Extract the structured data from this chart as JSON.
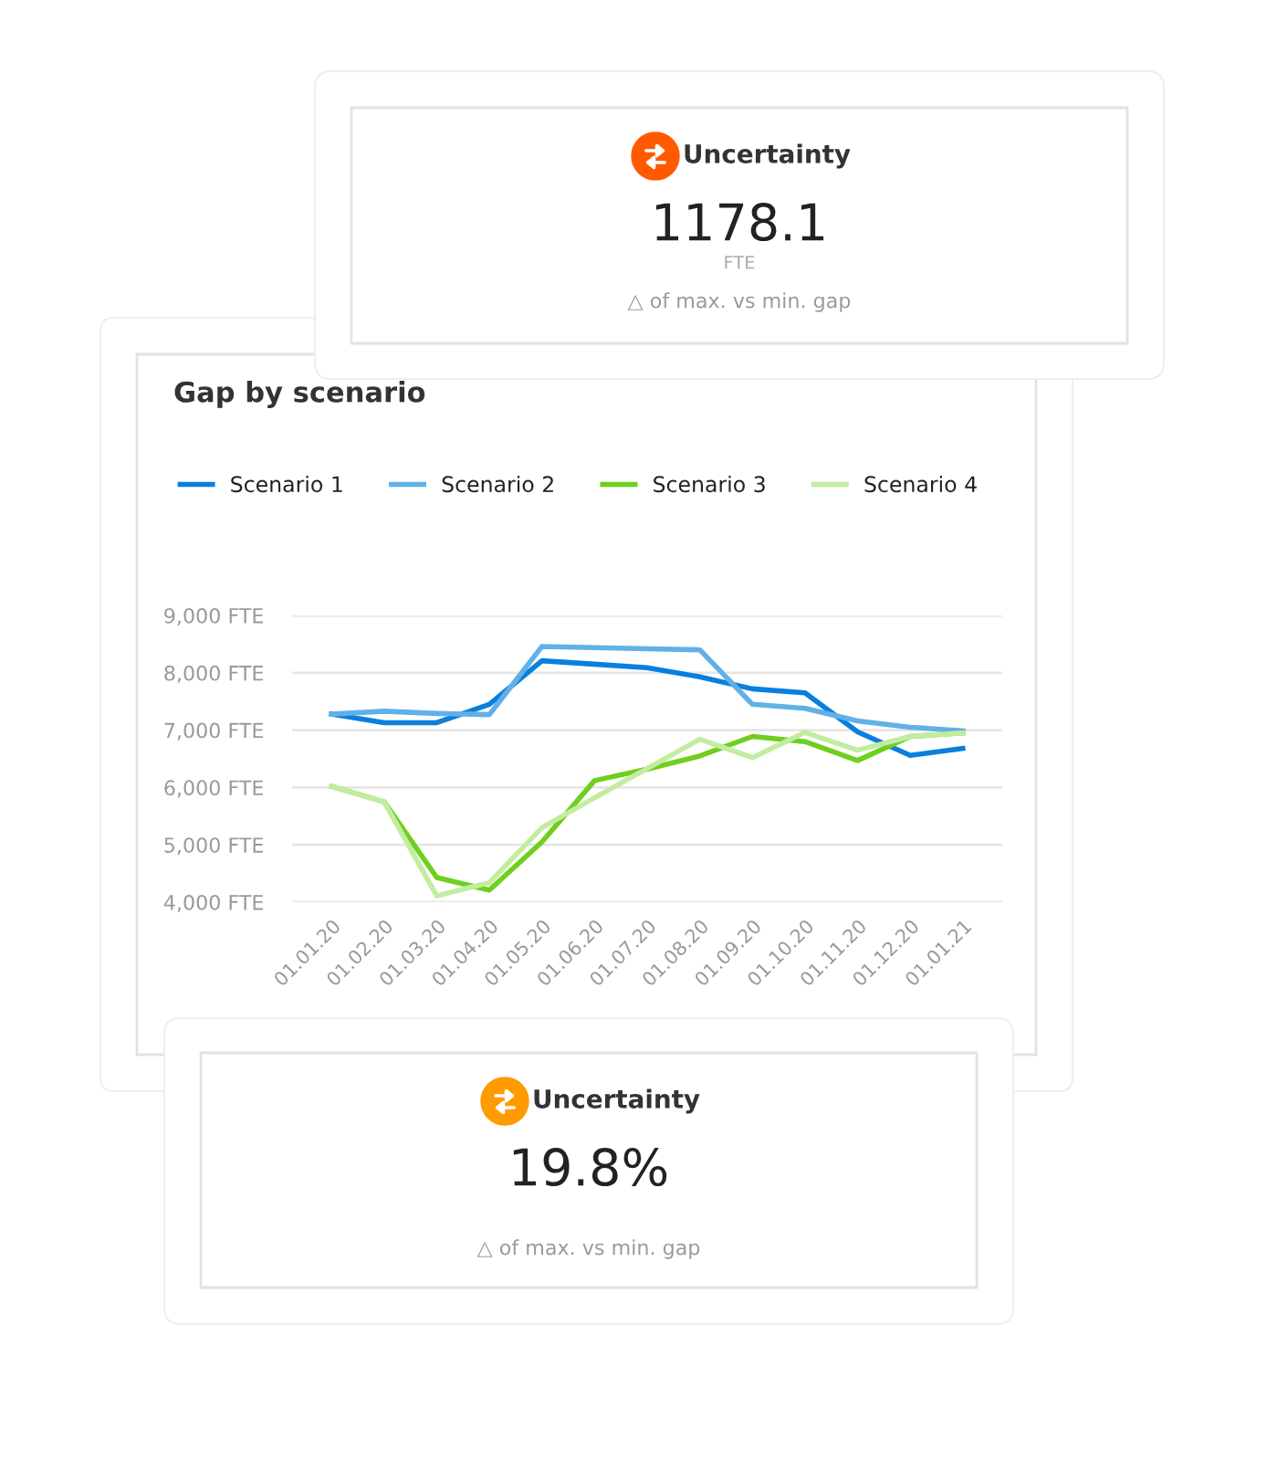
{
  "chart_data": [
    {
      "type": "other",
      "title": "Uncertainty",
      "annotations": [
        "1178.1",
        "FTE",
        "△ of max. vs min. gap"
      ],
      "color": "#ff5a00"
    },
    {
      "type": "line",
      "title": "Gap by scenario",
      "categories": [
        "01.01.20",
        "01.02.20",
        "01.03.20",
        "01.04.20",
        "01.05.20",
        "01.06.20",
        "01.07.20",
        "01.08.20",
        "01.09.20",
        "01.10.20",
        "01.11.20",
        "01.12.20",
        "01.01.21"
      ],
      "series": [
        {
          "name": "Scenario 1",
          "color": "#0a7fdc",
          "values": [
            7280,
            7130,
            7130,
            7450,
            8210,
            8150,
            8090,
            7930,
            7720,
            7650,
            6970,
            6560,
            6680
          ]
        },
        {
          "name": "Scenario 2",
          "color": "#62b0e8",
          "values": [
            7280,
            7330,
            7290,
            7270,
            8460,
            8440,
            8420,
            8400,
            7450,
            7380,
            7160,
            7050,
            6990
          ]
        },
        {
          "name": "Scenario 3",
          "color": "#6fcf1e",
          "values": [
            6020,
            5750,
            4430,
            4210,
            5050,
            6120,
            6320,
            6550,
            6890,
            6800,
            6470,
            6890,
            6950
          ]
        },
        {
          "name": "Scenario 4",
          "color": "#c3eca0",
          "values": [
            6020,
            5750,
            4110,
            4340,
            5300,
            5820,
            6330,
            6840,
            6520,
            6960,
            6650,
            6890,
            6950
          ]
        }
      ],
      "ylim": [
        4000,
        9000
      ],
      "yticks": [
        {
          "value": 4000,
          "label": "4,000 FTE"
        },
        {
          "value": 5000,
          "label": "5,000 FTE"
        },
        {
          "value": 6000,
          "label": "6,000 FTE"
        },
        {
          "value": 7000,
          "label": "7,000 FTE"
        },
        {
          "value": 8000,
          "label": "8,000 FTE"
        },
        {
          "value": 9000,
          "label": "9,000 FTE"
        }
      ],
      "grid": "y",
      "legend": "top left",
      "marker": "none",
      "line_style": "solid"
    },
    {
      "type": "other",
      "title": "Uncertainty",
      "annotations": [
        "19.8%",
        "△ of max. vs min. gap"
      ],
      "color": "#ff9a00"
    }
  ]
}
